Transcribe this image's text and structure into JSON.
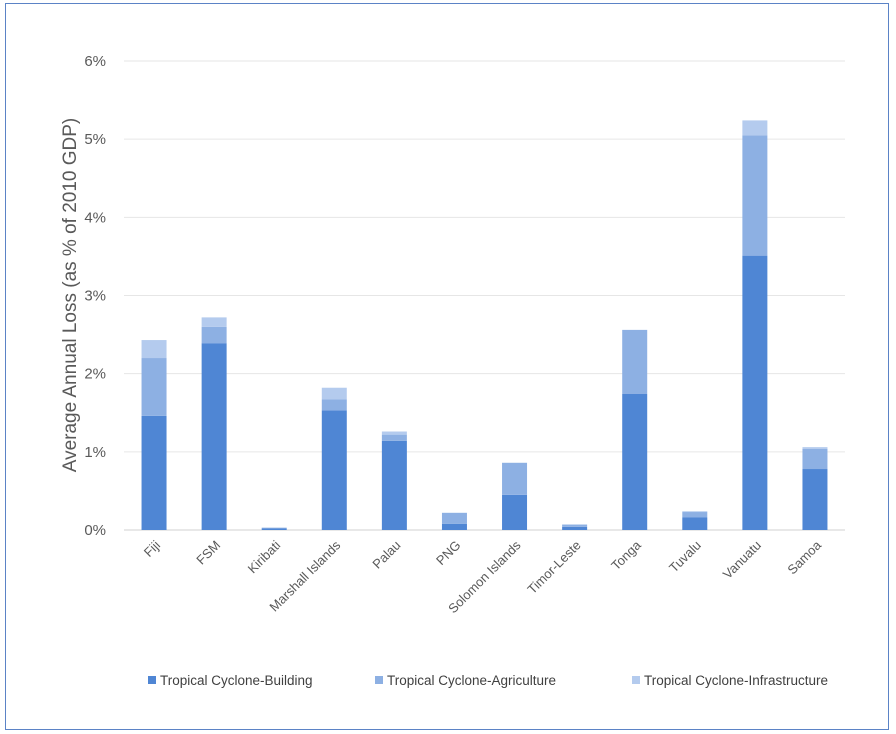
{
  "chart_data": {
    "type": "bar",
    "stacked": true,
    "ylabel": "Average Annual Loss (as % of 2010 GDP)",
    "xlabel": "",
    "ylim": [
      0,
      6
    ],
    "yticks": [
      0,
      1,
      2,
      3,
      4,
      5,
      6
    ],
    "ytick_labels": [
      "0%",
      "1%",
      "2%",
      "3%",
      "4%",
      "5%",
      "6%"
    ],
    "grid": true,
    "legend_position": "bottom",
    "categories": [
      "Fiji",
      "FSM",
      "Kiribati",
      "Marshall Islands",
      "Palau",
      "PNG",
      "Solomon Islands",
      "Timor-Leste",
      "Tonga",
      "Tuvalu",
      "Vanuatu",
      "Samoa"
    ],
    "series": [
      {
        "name": "Tropical Cyclone-Building",
        "color": "#4f86d4",
        "values": [
          1.46,
          2.39,
          0.02,
          1.53,
          1.14,
          0.08,
          0.45,
          0.04,
          1.74,
          0.16,
          3.51,
          0.78
        ]
      },
      {
        "name": "Tropical Cyclone-Agriculture",
        "color": "#8db0e3",
        "values": [
          0.74,
          0.21,
          0.01,
          0.14,
          0.08,
          0.14,
          0.41,
          0.03,
          0.82,
          0.07,
          1.54,
          0.26
        ]
      },
      {
        "name": "Tropical Cyclone-Infrastructure",
        "color": "#b4cbee",
        "values": [
          0.23,
          0.12,
          0.0,
          0.15,
          0.04,
          0.0,
          0.0,
          0.0,
          0.0,
          0.01,
          0.19,
          0.02
        ]
      }
    ]
  }
}
